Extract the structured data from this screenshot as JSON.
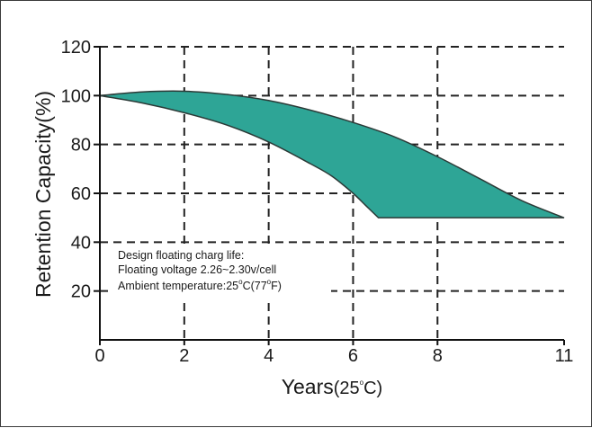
{
  "chart_data": {
    "type": "area",
    "xlabel": "Years",
    "xlabel_suffix": "(25",
    "xlabel_unit": "C)",
    "ylabel": "Retention Capacity(%)",
    "xlim": [
      0,
      11
    ],
    "ylim": [
      0,
      120
    ],
    "x_ticks": [
      "0",
      "2",
      "4",
      "6",
      "8",
      "11"
    ],
    "y_ticks": [
      "20",
      "40",
      "60",
      "80",
      "100",
      "120"
    ],
    "grid": "dashed",
    "fill_color": "#2ea596",
    "upper_boundary": {
      "x": [
        0,
        1,
        2,
        3,
        4,
        5,
        6,
        7,
        8,
        9,
        10,
        11
      ],
      "y": [
        100,
        101.5,
        101.8,
        100.5,
        98,
        94,
        89,
        83,
        75,
        66,
        57,
        50
      ]
    },
    "lower_boundary": {
      "x": [
        0,
        1,
        2,
        3,
        4,
        5,
        5.5,
        6,
        6.3,
        6.6,
        11
      ],
      "y": [
        100,
        97,
        93,
        88,
        81,
        72,
        67,
        60,
        55,
        50,
        50
      ]
    },
    "annotation": {
      "line1": "Design floating charg life:",
      "line2": "Floating voltage 2.26~2.30v/cell",
      "line3a": "Ambient temperature:25",
      "line3b": "C(77",
      "line3c": "F)",
      "degree": "o"
    }
  }
}
